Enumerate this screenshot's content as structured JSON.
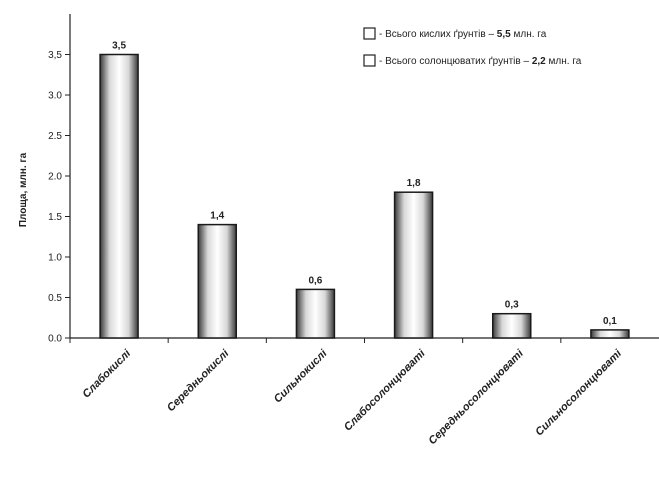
{
  "chart_data": {
    "type": "bar",
    "title": "",
    "xlabel": "",
    "ylabel": "Площа, млн. га",
    "ylim": [
      0,
      4.0
    ],
    "yticks": [
      "0.0",
      "0.5",
      "1.0",
      "1.5",
      "2.0",
      "2.5",
      "3.0",
      "3,5"
    ],
    "categories": [
      "Слабокислі",
      "Середньокислі",
      "Сильнокислі",
      "Слабосолонцюваті",
      "Середньосолонцюваті",
      "Сильносолонцюваті"
    ],
    "values": [
      3.5,
      1.4,
      0.6,
      1.8,
      0.3,
      0.1
    ],
    "data_labels": [
      "3,5",
      "1,4",
      "0,6",
      "1,8",
      "0,3",
      "0,1"
    ],
    "legend": {
      "placement": "top-right",
      "entries": [
        {
          "prefix": "- Всього кислих ґрунтів – ",
          "bold": "5,5",
          "suffix": " млн. га"
        },
        {
          "prefix": "- Всього солонцюватих ґрунтів – ",
          "bold": "2,2",
          "suffix": " млн. га"
        }
      ]
    },
    "grid": false,
    "colors": {
      "bar_edge": "#1a1a1a",
      "bar_light": "#ffffff",
      "bar_dark": "#4a4a4a",
      "axis": "#222222"
    }
  }
}
